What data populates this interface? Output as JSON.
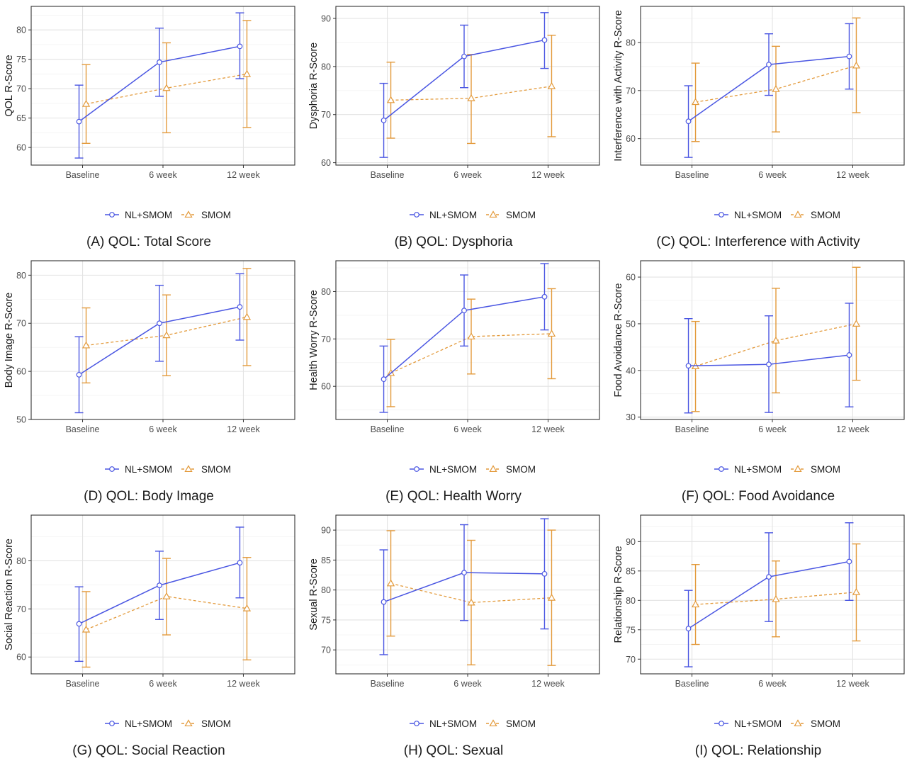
{
  "figure": {
    "legend": {
      "series": [
        {
          "name": "NL+SMOM",
          "color": "#4a56e2",
          "marker": "circle",
          "linestyle": "solid"
        },
        {
          "name": "SMOM",
          "color": "#e39a3b",
          "marker": "triangle",
          "linestyle": "dashed"
        }
      ],
      "placement": "bottom"
    }
  },
  "chart_data": [
    {
      "type": "line",
      "caption": "(A) QOL: Total Score",
      "ylabel": "QOL R-Score",
      "categories": [
        "Baseline",
        "6 week",
        "12 week"
      ],
      "ylim": [
        57,
        84
      ],
      "yticks": [
        60,
        65,
        70,
        75,
        80
      ],
      "grid": true,
      "series": [
        {
          "name": "NL+SMOM",
          "values": [
            64.4,
            74.5,
            77.2
          ],
          "lower": [
            58.2,
            68.7,
            71.7
          ],
          "upper": [
            70.6,
            80.3,
            82.9
          ]
        },
        {
          "name": "SMOM",
          "values": [
            67.4,
            70.1,
            72.5
          ],
          "lower": [
            60.7,
            62.5,
            63.4
          ],
          "upper": [
            74.1,
            77.8,
            81.6
          ]
        }
      ]
    },
    {
      "type": "line",
      "caption": "(B) QOL: Dysphoria",
      "ylabel": "Dysphoria R-Score",
      "categories": [
        "Baseline",
        "6 week",
        "12 week"
      ],
      "ylim": [
        59.5,
        92.5
      ],
      "yticks": [
        60,
        70,
        80,
        90
      ],
      "grid": true,
      "series": [
        {
          "name": "NL+SMOM",
          "values": [
            68.8,
            82.1,
            85.5
          ],
          "lower": [
            61.1,
            75.6,
            79.6
          ],
          "upper": [
            76.5,
            88.6,
            91.2
          ]
        },
        {
          "name": "SMOM",
          "values": [
            73.0,
            73.4,
            75.9
          ],
          "lower": [
            65.1,
            64.0,
            65.4
          ],
          "upper": [
            80.9,
            82.5,
            86.5
          ]
        }
      ]
    },
    {
      "type": "line",
      "caption": "(C) QOL: Interference with Activity",
      "ylabel": "Interference with Activity R-Score",
      "categories": [
        "Baseline",
        "6 week",
        "12 week"
      ],
      "ylim": [
        54.5,
        87.5
      ],
      "yticks": [
        60,
        70,
        80
      ],
      "grid": true,
      "series": [
        {
          "name": "NL+SMOM",
          "values": [
            63.6,
            75.4,
            77.1
          ],
          "lower": [
            56.1,
            69.0,
            70.3
          ],
          "upper": [
            71.0,
            81.8,
            83.9
          ]
        },
        {
          "name": "SMOM",
          "values": [
            67.6,
            70.3,
            75.2
          ],
          "lower": [
            59.4,
            61.4,
            65.4
          ],
          "upper": [
            75.7,
            79.2,
            85.1
          ]
        }
      ]
    },
    {
      "type": "line",
      "caption": "(D) QOL: Body Image",
      "ylabel": "Body Image R-Score",
      "categories": [
        "Baseline",
        "6 week",
        "12 week"
      ],
      "ylim": [
        50,
        83
      ],
      "yticks": [
        50,
        60,
        70,
        80
      ],
      "grid": true,
      "series": [
        {
          "name": "NL+SMOM",
          "values": [
            59.3,
            70.0,
            73.4
          ],
          "lower": [
            51.4,
            62.1,
            66.5
          ],
          "upper": [
            67.2,
            77.9,
            80.3
          ]
        },
        {
          "name": "SMOM",
          "values": [
            65.4,
            67.5,
            71.3
          ],
          "lower": [
            57.6,
            59.1,
            61.2
          ],
          "upper": [
            73.2,
            75.9,
            81.4
          ]
        }
      ]
    },
    {
      "type": "line",
      "caption": "(E) QOL: Health Worry",
      "ylabel": "Health Worry R-Score",
      "categories": [
        "Baseline",
        "6 week",
        "12 week"
      ],
      "ylim": [
        53,
        86.5
      ],
      "yticks": [
        60,
        70,
        80
      ],
      "grid": true,
      "series": [
        {
          "name": "NL+SMOM",
          "values": [
            61.5,
            76.0,
            78.9
          ],
          "lower": [
            54.5,
            68.5,
            71.9
          ],
          "upper": [
            68.5,
            83.5,
            85.9
          ]
        },
        {
          "name": "SMOM",
          "values": [
            62.8,
            70.5,
            71.1
          ],
          "lower": [
            55.7,
            62.6,
            61.6
          ],
          "upper": [
            69.9,
            78.4,
            80.6
          ]
        }
      ]
    },
    {
      "type": "line",
      "caption": "(F) QOL: Food Avoidance",
      "ylabel": "Food Avoidance R-Score",
      "categories": [
        "Baseline",
        "6 week",
        "12 week"
      ],
      "ylim": [
        29.5,
        63.5
      ],
      "yticks": [
        30,
        40,
        50,
        60
      ],
      "grid": true,
      "series": [
        {
          "name": "NL+SMOM",
          "values": [
            41.0,
            41.3,
            43.3
          ],
          "lower": [
            30.9,
            31.0,
            32.2
          ],
          "upper": [
            51.1,
            51.7,
            54.4
          ]
        },
        {
          "name": "SMOM",
          "values": [
            40.9,
            46.4,
            50.0
          ],
          "lower": [
            31.2,
            35.2,
            37.9
          ],
          "upper": [
            50.5,
            57.6,
            62.1
          ]
        }
      ]
    },
    {
      "type": "line",
      "caption": "(G) QOL: Social Reaction",
      "ylabel": "Social Reaction R-Score",
      "categories": [
        "Baseline",
        "6 week",
        "12 week"
      ],
      "ylim": [
        56.5,
        89.5
      ],
      "yticks": [
        60,
        70,
        80
      ],
      "grid": true,
      "series": [
        {
          "name": "NL+SMOM",
          "values": [
            66.9,
            74.9,
            79.6
          ],
          "lower": [
            59.1,
            67.8,
            72.3
          ],
          "upper": [
            74.6,
            82.0,
            87.0
          ]
        },
        {
          "name": "SMOM",
          "values": [
            65.7,
            72.6,
            70.1
          ],
          "lower": [
            57.9,
            64.6,
            59.4
          ],
          "upper": [
            73.6,
            80.5,
            80.7
          ]
        }
      ]
    },
    {
      "type": "line",
      "caption": "(H) QOL: Sexual",
      "ylabel": "Sexual R-Score",
      "categories": [
        "Baseline",
        "6 week",
        "12 week"
      ],
      "ylim": [
        66,
        92.5
      ],
      "yticks": [
        70,
        75,
        80,
        85,
        90
      ],
      "grid": true,
      "series": [
        {
          "name": "NL+SMOM",
          "values": [
            78.0,
            82.9,
            82.7
          ],
          "lower": [
            69.2,
            74.9,
            73.5
          ],
          "upper": [
            86.7,
            90.9,
            91.9
          ]
        },
        {
          "name": "SMOM",
          "values": [
            81.1,
            77.9,
            78.7
          ],
          "lower": [
            72.3,
            67.5,
            67.4
          ],
          "upper": [
            89.9,
            88.3,
            90.0
          ]
        }
      ]
    },
    {
      "type": "line",
      "caption": "(I) QOL: Relationship",
      "ylabel": "Relationship R-Score",
      "categories": [
        "Baseline",
        "6 week",
        "12 week"
      ],
      "ylim": [
        67.5,
        94.5
      ],
      "yticks": [
        70,
        75,
        80,
        85,
        90
      ],
      "grid": true,
      "series": [
        {
          "name": "NL+SMOM",
          "values": [
            75.2,
            84.0,
            86.6
          ],
          "lower": [
            68.7,
            76.4,
            80.0
          ],
          "upper": [
            81.7,
            91.5,
            93.2
          ]
        },
        {
          "name": "SMOM",
          "values": [
            79.3,
            80.2,
            81.4
          ],
          "lower": [
            72.5,
            73.8,
            73.1
          ],
          "upper": [
            86.1,
            86.7,
            89.6
          ]
        }
      ]
    }
  ]
}
